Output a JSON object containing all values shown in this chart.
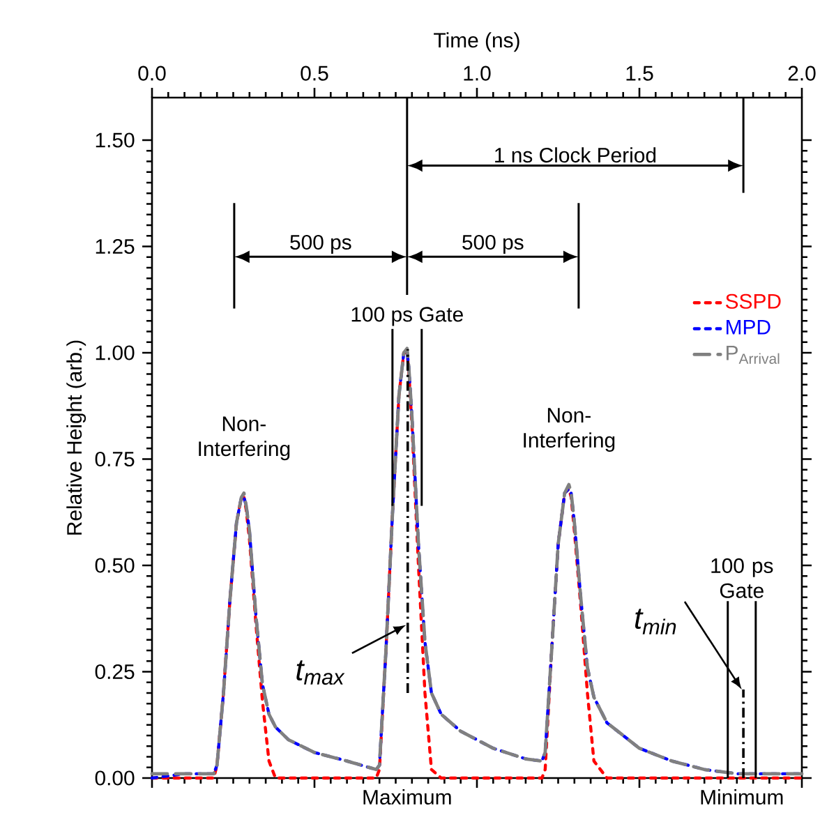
{
  "chart_data": {
    "type": "line",
    "xlabel": "Time (ns)",
    "ylabel": "Relative Height (arb.)",
    "xlim": [
      0,
      2
    ],
    "xticks": [
      {
        "value": 0,
        "label": "0.0"
      },
      0.5,
      {
        "value": 1,
        "label": "1.0"
      },
      1.5,
      {
        "value": 2,
        "label": "2.0"
      }
    ],
    "ylim": [
      0,
      1.6
    ],
    "yticks": [
      {
        "value": 0,
        "label": "0.00"
      },
      {
        "value": 0.25,
        "label": "0.25"
      },
      {
        "value": 0.5,
        "label": "0.50"
      },
      {
        "value": 0.75,
        "label": "0.75"
      },
      {
        "value": 1,
        "label": "1.00"
      },
      {
        "value": 1.25,
        "label": "1.25"
      },
      {
        "value": 1.5,
        "label": "1.50"
      }
    ],
    "x": [
      0,
      0.1,
      0.19,
      0.2,
      0.22,
      0.24,
      0.26,
      0.275,
      0.283,
      0.29,
      0.3,
      0.32,
      0.34,
      0.36,
      0.38,
      0.42,
      0.5,
      0.6,
      0.69,
      0.7,
      0.72,
      0.74,
      0.76,
      0.775,
      0.785,
      0.79,
      0.8,
      0.82,
      0.84,
      0.86,
      0.89,
      0.95,
      1.05,
      1.15,
      1.2,
      1.21,
      1.23,
      1.25,
      1.27,
      1.283,
      1.29,
      1.3,
      1.32,
      1.34,
      1.36,
      1.4,
      1.5,
      1.6,
      1.7,
      1.8,
      1.9,
      2.0
    ],
    "series": [
      {
        "name": "SSPD",
        "color": "#ff0000",
        "line_style": "dotted",
        "values": [
          0,
          0,
          0,
          0.03,
          0.2,
          0.42,
          0.6,
          0.66,
          0.66,
          0.63,
          0.56,
          0.36,
          0.18,
          0.04,
          0,
          0,
          0,
          0,
          0,
          0.02,
          0.3,
          0.62,
          0.9,
          1.0,
          1.0,
          0.96,
          0.83,
          0.5,
          0.2,
          0.02,
          0,
          0,
          0,
          0,
          0,
          0.02,
          0.3,
          0.55,
          0.67,
          0.68,
          0.66,
          0.58,
          0.4,
          0.2,
          0.04,
          0,
          0,
          0,
          0,
          0,
          0,
          0
        ]
      },
      {
        "name": "MPD",
        "color": "#0000ff",
        "line_style": "dotted",
        "values": [
          0,
          0.01,
          0.01,
          0.03,
          0.2,
          0.42,
          0.6,
          0.66,
          0.66,
          0.64,
          0.58,
          0.38,
          0.22,
          0.15,
          0.12,
          0.09,
          0.06,
          0.04,
          0.02,
          0.03,
          0.3,
          0.62,
          0.9,
          1.0,
          1.0,
          0.97,
          0.85,
          0.55,
          0.32,
          0.2,
          0.15,
          0.11,
          0.07,
          0.045,
          0.04,
          0.06,
          0.3,
          0.55,
          0.67,
          0.68,
          0.67,
          0.6,
          0.42,
          0.26,
          0.19,
          0.13,
          0.07,
          0.04,
          0.02,
          0.01,
          0.01,
          0.01
        ]
      },
      {
        "name": "P$_{Arrival}$",
        "color": "#808080",
        "line_style": "dashed",
        "values": [
          0.01,
          0.01,
          0.01,
          0.03,
          0.2,
          0.42,
          0.6,
          0.66,
          0.67,
          0.64,
          0.58,
          0.38,
          0.22,
          0.15,
          0.12,
          0.09,
          0.06,
          0.04,
          0.02,
          0.03,
          0.3,
          0.62,
          0.9,
          1.0,
          1.01,
          0.97,
          0.85,
          0.55,
          0.32,
          0.2,
          0.15,
          0.11,
          0.07,
          0.045,
          0.04,
          0.06,
          0.3,
          0.55,
          0.67,
          0.69,
          0.67,
          0.6,
          0.42,
          0.26,
          0.19,
          0.13,
          0.07,
          0.04,
          0.02,
          0.01,
          0.01,
          0.01
        ]
      }
    ],
    "legend": "right",
    "ref_lines": [
      {
        "axis": "x",
        "value": 0.785,
        "color": "#000000",
        "line_style": "solid"
      },
      {
        "axis": "x",
        "value": 1.82,
        "color": "#000000",
        "line_style": "solid"
      },
      {
        "axis": "x",
        "value": 0.253,
        "color": "#000000",
        "line_style": "solid"
      },
      {
        "axis": "x",
        "value": 1.313,
        "color": "#000000",
        "line_style": "solid"
      },
      {
        "axis": "x",
        "value": 0.74,
        "color": "#000000",
        "line_style": "solid"
      },
      {
        "axis": "x",
        "value": 0.83,
        "color": "#000000",
        "line_style": "solid"
      },
      {
        "axis": "x",
        "value": 1.772,
        "color": "#000000",
        "line_style": "solid"
      },
      {
        "axis": "x",
        "value": 1.858,
        "color": "#000000",
        "line_style": "solid"
      },
      {
        "axis": "x",
        "value": 0.787,
        "label": "t$_{max}$",
        "color": "#000000",
        "line_style": "dashed"
      },
      {
        "axis": "x",
        "value": 1.82,
        "label": "t$_{min}$",
        "color": "#000000",
        "line_style": "dashed"
      }
    ],
    "annotations": [
      "1 ns Clock Period",
      "500 ps",
      "500 ps",
      "100 ps Gate",
      "100 ps Gate",
      "Maximum",
      "Minimum",
      {
        "text": "Non-Interfering",
        "x": 0.283,
        "y": 0.66
      },
      {
        "text": "Non-Interfering",
        "x": 1.283,
        "y": 0.68
      }
    ]
  }
}
